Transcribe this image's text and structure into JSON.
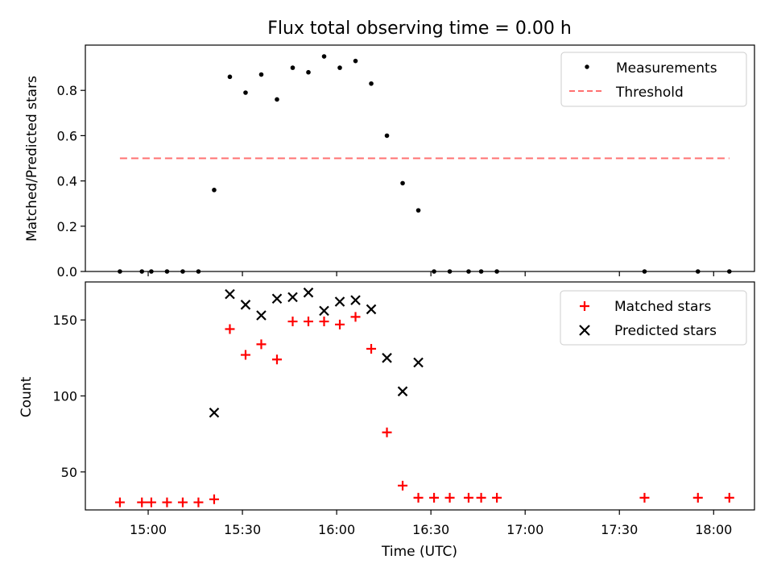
{
  "chart_data": {
    "type": "scatter",
    "title": "Flux total observing time = 0.00 h",
    "xlabel": "Time (UTC)",
    "x_unit": "minutes after midnight UTC",
    "xlim": [
      880,
      1093
    ],
    "x_ticks": [
      {
        "v": 900,
        "label": "15:00"
      },
      {
        "v": 930,
        "label": "15:30"
      },
      {
        "v": 960,
        "label": "16:00"
      },
      {
        "v": 990,
        "label": "16:30"
      },
      {
        "v": 1020,
        "label": "17:00"
      },
      {
        "v": 1050,
        "label": "17:30"
      },
      {
        "v": 1080,
        "label": "18:00"
      }
    ],
    "times": [
      891,
      898,
      901,
      906,
      911,
      916,
      921,
      926,
      931,
      936,
      941,
      946,
      951,
      956,
      961,
      966,
      971,
      976,
      981,
      986,
      991,
      996,
      1002,
      1006,
      1011,
      1058,
      1075,
      1085
    ],
    "top": {
      "ylabel": "Matched/Predicted stars",
      "ylim": [
        0,
        1.0
      ],
      "yticks": [
        {
          "v": 0,
          "label": "0.0"
        },
        {
          "v": 0.2,
          "label": "0.2"
        },
        {
          "v": 0.4,
          "label": "0.4"
        },
        {
          "v": 0.6,
          "label": "0.6"
        },
        {
          "v": 0.8,
          "label": "0.8"
        }
      ],
      "series": [
        {
          "name": "Measurements",
          "marker": "dot",
          "color": "#000000",
          "values": [
            0,
            0,
            0,
            0,
            0,
            0,
            0.36,
            0.86,
            0.79,
            0.87,
            0.76,
            0.9,
            0.88,
            0.95,
            0.9,
            0.93,
            0.83,
            0.6,
            0.39,
            0.27,
            0,
            0,
            0,
            0,
            0,
            0,
            0,
            0
          ]
        },
        {
          "name": "Threshold",
          "marker": "dashed-line",
          "color": "#ff7070",
          "x": [
            891,
            1085
          ],
          "values": [
            0.5,
            0.5
          ]
        }
      ]
    },
    "bottom": {
      "ylabel": "Count",
      "ylim": [
        25,
        175
      ],
      "yticks": [
        {
          "v": 50,
          "label": "50"
        },
        {
          "v": 100,
          "label": "100"
        },
        {
          "v": 150,
          "label": "150"
        }
      ],
      "series": [
        {
          "name": "Matched stars",
          "marker": "plus",
          "color": "#ff0000",
          "values": [
            30,
            30,
            30,
            30,
            30,
            30,
            32,
            144,
            127,
            134,
            124,
            149,
            149,
            149,
            147,
            152,
            131,
            76,
            41,
            33,
            33,
            33,
            33,
            33,
            33,
            33,
            33,
            33
          ]
        },
        {
          "name": "Predicted stars",
          "marker": "x",
          "color": "#000000",
          "x": [
            921,
            926,
            931,
            936,
            941,
            946,
            951,
            956,
            961,
            966,
            971,
            976,
            981,
            986
          ],
          "values": [
            89,
            167,
            160,
            153,
            164,
            165,
            168,
            156,
            162,
            163,
            157,
            125,
            103,
            122
          ]
        }
      ]
    }
  }
}
